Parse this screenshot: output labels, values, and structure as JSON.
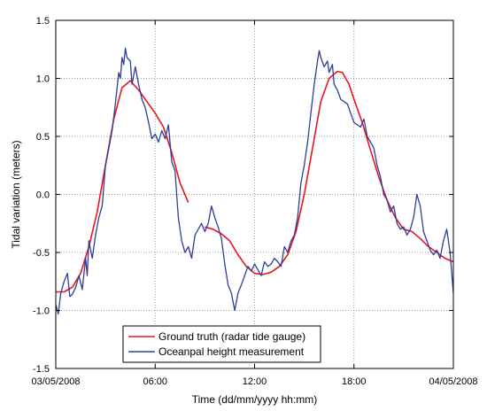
{
  "chart_data": {
    "type": "line",
    "title": "",
    "xlabel": "Time (dd/mm/yyyy hh:mm)",
    "ylabel": "Tidal variation (meters)",
    "x_unit": "hours",
    "xlim": [
      0,
      24
    ],
    "ylim": [
      -1.5,
      1.5
    ],
    "grid": true,
    "legend_position": "bottom-center",
    "x_ticks": [
      {
        "value": 0,
        "label": "03/05/2008"
      },
      {
        "value": 6,
        "label": "06:00"
      },
      {
        "value": 12,
        "label": "12:00"
      },
      {
        "value": 18,
        "label": "18:00"
      },
      {
        "value": 24,
        "label": "04/05/2008"
      }
    ],
    "y_ticks": [
      {
        "value": -1.5,
        "label": "-1.5"
      },
      {
        "value": -1.0,
        "label": "-1.0"
      },
      {
        "value": -0.5,
        "label": "-0.5"
      },
      {
        "value": 0.0,
        "label": "0.0"
      },
      {
        "value": 0.5,
        "label": "0.5"
      },
      {
        "value": 1.0,
        "label": "1.0"
      },
      {
        "value": 1.5,
        "label": "1.5"
      }
    ],
    "series": [
      {
        "name": "Ground truth (radar tide gauge)",
        "color": "#e8141e",
        "segments": [
          [
            [
              0,
              -0.84
            ],
            [
              0.5,
              -0.84
            ],
            [
              1.0,
              -0.8
            ],
            [
              1.5,
              -0.68
            ],
            [
              2.0,
              -0.45
            ],
            [
              2.5,
              -0.15
            ],
            [
              3.0,
              0.25
            ],
            [
              3.5,
              0.65
            ],
            [
              4.0,
              0.92
            ],
            [
              4.5,
              0.98
            ],
            [
              5.0,
              0.9
            ],
            [
              5.5,
              0.8
            ],
            [
              6.0,
              0.7
            ],
            [
              6.5,
              0.58
            ],
            [
              7.0,
              0.36
            ],
            [
              7.5,
              0.1
            ],
            [
              8.0,
              -0.07
            ]
          ],
          [
            [
              9.0,
              -0.28
            ],
            [
              9.5,
              -0.3
            ],
            [
              10.0,
              -0.34
            ],
            [
              10.5,
              -0.4
            ],
            [
              11.0,
              -0.52
            ],
            [
              11.5,
              -0.62
            ],
            [
              12.0,
              -0.68
            ],
            [
              12.5,
              -0.69
            ],
            [
              13.0,
              -0.67
            ],
            [
              13.5,
              -0.62
            ],
            [
              14.0,
              -0.52
            ],
            [
              14.5,
              -0.32
            ],
            [
              15.0,
              0.0
            ],
            [
              15.5,
              0.4
            ],
            [
              16.0,
              0.8
            ],
            [
              16.5,
              1.0
            ],
            [
              17.0,
              1.06
            ],
            [
              17.3,
              1.05
            ],
            [
              17.7,
              0.95
            ],
            [
              18.0,
              0.82
            ],
            [
              18.5,
              0.62
            ],
            [
              19.0,
              0.38
            ],
            [
              19.5,
              0.15
            ],
            [
              20.0,
              -0.05
            ],
            [
              20.5,
              -0.2
            ],
            [
              21.0,
              -0.3
            ],
            [
              21.5,
              -0.32
            ],
            [
              22.0,
              -0.38
            ],
            [
              22.5,
              -0.45
            ],
            [
              23.0,
              -0.5
            ],
            [
              23.5,
              -0.55
            ],
            [
              24.0,
              -0.58
            ]
          ]
        ]
      },
      {
        "name": "Oceanpal height measurement",
        "color": "#2b3e9a",
        "segments": [
          [
            [
              0,
              -0.95
            ],
            [
              0.15,
              -1.03
            ],
            [
              0.3,
              -0.85
            ],
            [
              0.5,
              -0.75
            ],
            [
              0.7,
              -0.68
            ],
            [
              0.85,
              -0.88
            ],
            [
              1.0,
              -0.86
            ],
            [
              1.2,
              -0.8
            ],
            [
              1.4,
              -0.7
            ],
            [
              1.6,
              -0.82
            ],
            [
              1.8,
              -0.55
            ],
            [
              1.9,
              -0.7
            ],
            [
              2.0,
              -0.4
            ],
            [
              2.2,
              -0.55
            ],
            [
              2.4,
              -0.35
            ],
            [
              2.6,
              -0.2
            ],
            [
              2.8,
              -0.1
            ],
            [
              3.0,
              0.25
            ],
            [
              3.2,
              0.4
            ],
            [
              3.4,
              0.55
            ],
            [
              3.6,
              0.78
            ],
            [
              3.8,
              1.05
            ],
            [
              3.9,
              1.0
            ],
            [
              4.0,
              1.18
            ],
            [
              4.1,
              1.12
            ],
            [
              4.2,
              1.26
            ],
            [
              4.3,
              1.18
            ],
            [
              4.5,
              1.15
            ],
            [
              4.6,
              0.95
            ],
            [
              4.8,
              1.1
            ],
            [
              5.0,
              0.95
            ],
            [
              5.2,
              0.82
            ],
            [
              5.4,
              0.75
            ],
            [
              5.6,
              0.62
            ],
            [
              5.8,
              0.48
            ],
            [
              6.0,
              0.52
            ],
            [
              6.2,
              0.45
            ],
            [
              6.4,
              0.55
            ],
            [
              6.6,
              0.48
            ],
            [
              6.8,
              0.6
            ],
            [
              7.0,
              0.28
            ],
            [
              7.2,
              0.2
            ],
            [
              7.4,
              -0.2
            ],
            [
              7.6,
              -0.4
            ],
            [
              7.8,
              -0.5
            ],
            [
              8.0,
              -0.45
            ],
            [
              8.2,
              -0.55
            ],
            [
              8.4,
              -0.35
            ],
            [
              8.6,
              -0.3
            ],
            [
              8.8,
              -0.25
            ],
            [
              9.0,
              -0.32
            ],
            [
              9.2,
              -0.25
            ],
            [
              9.4,
              -0.1
            ],
            [
              9.6,
              -0.2
            ],
            [
              9.8,
              -0.28
            ],
            [
              10.0,
              -0.38
            ],
            [
              10.2,
              -0.6
            ],
            [
              10.4,
              -0.78
            ],
            [
              10.6,
              -0.85
            ],
            [
              10.8,
              -1.0
            ],
            [
              11.0,
              -0.85
            ],
            [
              11.2,
              -0.78
            ],
            [
              11.4,
              -0.7
            ],
            [
              11.6,
              -0.62
            ],
            [
              11.8,
              -0.66
            ],
            [
              12.0,
              -0.6
            ],
            [
              12.2,
              -0.65
            ],
            [
              12.4,
              -0.7
            ],
            [
              12.6,
              -0.58
            ],
            [
              12.8,
              -0.62
            ],
            [
              13.0,
              -0.6
            ],
            [
              13.2,
              -0.55
            ],
            [
              13.4,
              -0.58
            ],
            [
              13.6,
              -0.62
            ],
            [
              13.8,
              -0.45
            ],
            [
              14.0,
              -0.5
            ],
            [
              14.2,
              -0.4
            ],
            [
              14.4,
              -0.35
            ],
            [
              14.6,
              -0.2
            ],
            [
              14.8,
              0.1
            ],
            [
              15.0,
              0.25
            ],
            [
              15.2,
              0.45
            ],
            [
              15.4,
              0.7
            ],
            [
              15.6,
              0.95
            ],
            [
              15.8,
              1.15
            ],
            [
              15.9,
              1.24
            ],
            [
              16.0,
              1.18
            ],
            [
              16.2,
              1.1
            ],
            [
              16.4,
              1.15
            ],
            [
              16.5,
              1.05
            ],
            [
              16.7,
              1.12
            ],
            [
              16.8,
              0.95
            ],
            [
              17.0,
              0.9
            ],
            [
              17.2,
              0.82
            ],
            [
              17.4,
              0.8
            ],
            [
              17.6,
              0.78
            ],
            [
              17.8,
              0.7
            ],
            [
              18.0,
              0.62
            ],
            [
              18.2,
              0.6
            ],
            [
              18.4,
              0.58
            ],
            [
              18.6,
              0.65
            ],
            [
              18.8,
              0.5
            ],
            [
              19.0,
              0.45
            ],
            [
              19.2,
              0.4
            ],
            [
              19.4,
              0.25
            ],
            [
              19.6,
              0.15
            ],
            [
              19.8,
              0.0
            ],
            [
              20.0,
              -0.05
            ],
            [
              20.2,
              -0.15
            ],
            [
              20.4,
              -0.1
            ],
            [
              20.6,
              -0.25
            ],
            [
              20.8,
              -0.3
            ],
            [
              21.0,
              -0.28
            ],
            [
              21.2,
              -0.35
            ],
            [
              21.4,
              -0.3
            ],
            [
              21.6,
              -0.2
            ],
            [
              21.8,
              0.0
            ],
            [
              22.0,
              -0.1
            ],
            [
              22.2,
              -0.32
            ],
            [
              22.4,
              -0.4
            ],
            [
              22.6,
              -0.48
            ],
            [
              22.8,
              -0.52
            ],
            [
              23.0,
              -0.48
            ],
            [
              23.2,
              -0.55
            ],
            [
              23.4,
              -0.4
            ],
            [
              23.6,
              -0.3
            ],
            [
              23.8,
              -0.5
            ],
            [
              24.0,
              -0.85
            ]
          ]
        ]
      }
    ]
  }
}
